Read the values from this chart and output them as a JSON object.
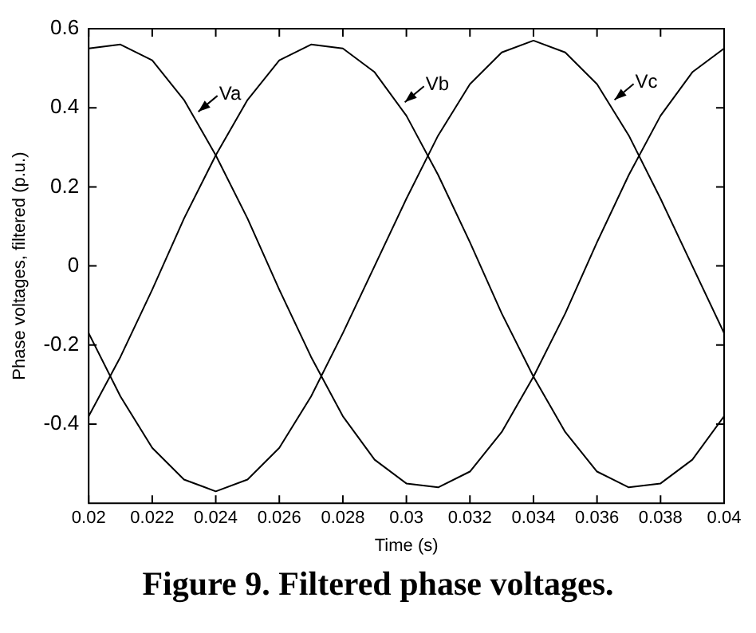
{
  "chart_data": {
    "type": "line",
    "title": "Figure 9. Filtered phase voltages.",
    "xlabel": "Time (s)",
    "ylabel": "Phase voltages, filtered (p.u.)",
    "x": [
      0.02,
      0.021,
      0.022,
      0.023,
      0.024,
      0.025,
      0.026,
      0.027,
      0.028,
      0.029,
      0.03,
      0.031,
      0.032,
      0.033,
      0.034,
      0.035,
      0.036,
      0.037,
      0.038,
      0.039,
      0.04
    ],
    "series": [
      {
        "name": "Va",
        "color": "#000000",
        "values": [
          0.55,
          0.56,
          0.52,
          0.42,
          0.28,
          0.12,
          -0.06,
          -0.23,
          -0.38,
          -0.49,
          -0.55,
          -0.56,
          -0.52,
          -0.42,
          -0.28,
          -0.12,
          0.06,
          0.23,
          0.38,
          0.49,
          0.55
        ]
      },
      {
        "name": "Vb",
        "color": "#000000",
        "values": [
          -0.38,
          -0.23,
          -0.06,
          0.12,
          0.28,
          0.42,
          0.52,
          0.56,
          0.55,
          0.49,
          0.38,
          0.23,
          0.06,
          -0.12,
          -0.28,
          -0.42,
          -0.52,
          -0.56,
          -0.55,
          -0.49,
          -0.38
        ]
      },
      {
        "name": "Vc",
        "color": "#000000",
        "values": [
          -0.17,
          -0.33,
          -0.46,
          -0.54,
          -0.57,
          -0.54,
          -0.46,
          -0.33,
          -0.17,
          0,
          0.17,
          0.33,
          0.46,
          0.54,
          0.57,
          0.54,
          0.46,
          0.33,
          0.17,
          0,
          -0.17
        ]
      }
    ],
    "xlim": [
      0.02,
      0.04
    ],
    "xticks": [
      0.02,
      0.022,
      0.024,
      0.026,
      0.028,
      0.03,
      0.032,
      0.034,
      0.036,
      0.038,
      0.04
    ],
    "ylim": [
      -0.6,
      0.6
    ],
    "yticks": [
      -0.4,
      -0.2,
      0,
      0.2,
      0.4,
      0.6
    ],
    "grid": false,
    "legend": "top",
    "marker": "none",
    "line_style": "solid"
  }
}
